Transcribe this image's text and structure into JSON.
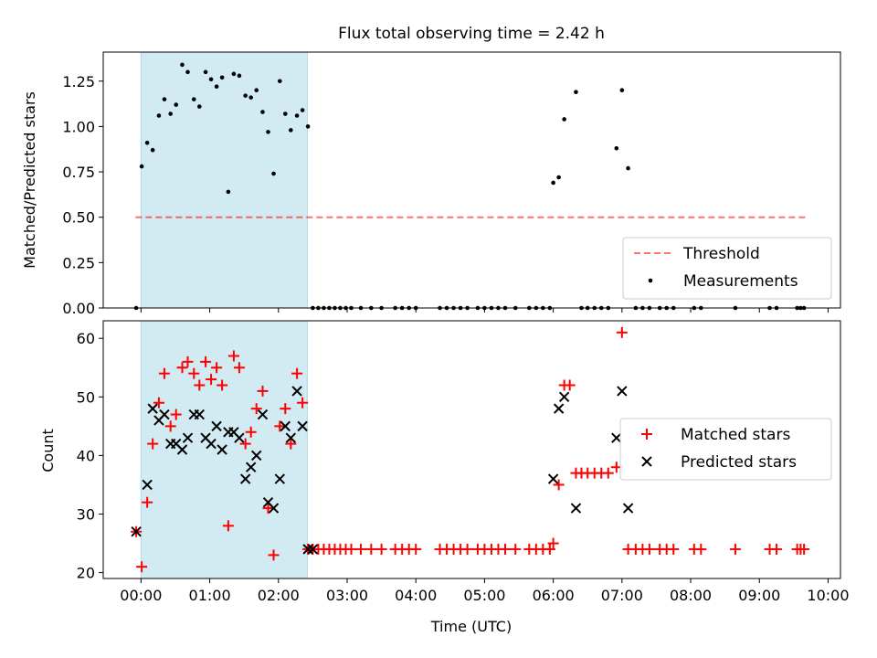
{
  "title": "Flux total observing time = 2.42 h",
  "colors": {
    "shade": "#add8e6",
    "threshold": "#ff0000",
    "measurement": "#000000",
    "matched": "#ff0000",
    "predicted": "#000000"
  },
  "chart_data": [
    {
      "type": "scatter",
      "title": "Flux total observing time = 2.42 h",
      "xlabel": "",
      "ylabel": "Matched/Predicted stars",
      "xlim": [
        -0.55,
        10.18
      ],
      "ylim": [
        0,
        1.41
      ],
      "yticks": [
        0.0,
        0.25,
        0.5,
        0.75,
        1.0,
        1.25
      ],
      "ytick_labels": [
        "0.00",
        "0.25",
        "0.50",
        "0.75",
        "1.00",
        "1.25"
      ],
      "shaded_span": [
        0.0,
        2.42
      ],
      "legend": {
        "position": "lower right",
        "entries": [
          "Threshold",
          "Measurements"
        ]
      },
      "threshold": {
        "name": "Threshold",
        "y": 0.5,
        "x": [
          -0.08,
          9.67
        ],
        "style": "dashed"
      },
      "series": [
        {
          "name": "Measurements",
          "marker": "dot",
          "points": [
            [
              -0.07,
              0.0
            ],
            [
              0.01,
              0.78
            ],
            [
              0.09,
              0.91
            ],
            [
              0.17,
              0.87
            ],
            [
              0.26,
              1.06
            ],
            [
              0.34,
              1.15
            ],
            [
              0.43,
              1.07
            ],
            [
              0.51,
              1.12
            ],
            [
              0.6,
              1.34
            ],
            [
              0.68,
              1.3
            ],
            [
              0.77,
              1.15
            ],
            [
              0.85,
              1.11
            ],
            [
              0.94,
              1.3
            ],
            [
              1.02,
              1.26
            ],
            [
              1.1,
              1.22
            ],
            [
              1.18,
              1.27
            ],
            [
              1.27,
              0.64
            ],
            [
              1.35,
              1.29
            ],
            [
              1.43,
              1.28
            ],
            [
              1.52,
              1.17
            ],
            [
              1.6,
              1.16
            ],
            [
              1.68,
              1.2
            ],
            [
              1.77,
              1.08
            ],
            [
              1.85,
              0.97
            ],
            [
              1.93,
              0.74
            ],
            [
              2.02,
              1.25
            ],
            [
              2.1,
              1.07
            ],
            [
              2.18,
              0.98
            ],
            [
              2.27,
              1.06
            ],
            [
              2.35,
              1.09
            ],
            [
              2.43,
              1.0
            ],
            [
              2.5,
              0.0
            ],
            [
              2.58,
              0.0
            ],
            [
              2.66,
              0.0
            ],
            [
              2.74,
              0.0
            ],
            [
              2.82,
              0.0
            ],
            [
              2.9,
              0.0
            ],
            [
              2.98,
              0.0
            ],
            [
              3.06,
              0.0
            ],
            [
              3.2,
              0.0
            ],
            [
              3.35,
              0.0
            ],
            [
              3.5,
              0.0
            ],
            [
              3.7,
              0.0
            ],
            [
              3.8,
              0.0
            ],
            [
              3.9,
              0.0
            ],
            [
              4.0,
              0.0
            ],
            [
              4.35,
              0.0
            ],
            [
              4.45,
              0.0
            ],
            [
              4.55,
              0.0
            ],
            [
              4.65,
              0.0
            ],
            [
              4.75,
              0.0
            ],
            [
              4.9,
              0.0
            ],
            [
              5.0,
              0.0
            ],
            [
              5.1,
              0.0
            ],
            [
              5.2,
              0.0
            ],
            [
              5.3,
              0.0
            ],
            [
              5.45,
              0.0
            ],
            [
              5.65,
              0.0
            ],
            [
              5.75,
              0.0
            ],
            [
              5.85,
              0.0
            ],
            [
              5.95,
              0.0
            ],
            [
              6.0,
              0.69
            ],
            [
              6.08,
              0.72
            ],
            [
              6.16,
              1.04
            ],
            [
              6.33,
              1.19
            ],
            [
              6.41,
              0.0
            ],
            [
              6.5,
              0.0
            ],
            [
              6.6,
              0.0
            ],
            [
              6.7,
              0.0
            ],
            [
              6.8,
              0.0
            ],
            [
              6.92,
              0.88
            ],
            [
              7.0,
              1.2
            ],
            [
              7.09,
              0.77
            ],
            [
              7.2,
              0.0
            ],
            [
              7.3,
              0.0
            ],
            [
              7.4,
              0.0
            ],
            [
              7.55,
              0.0
            ],
            [
              7.65,
              0.0
            ],
            [
              7.75,
              0.0
            ],
            [
              8.05,
              0.0
            ],
            [
              8.15,
              0.0
            ],
            [
              8.65,
              0.0
            ],
            [
              9.15,
              0.0
            ],
            [
              9.25,
              0.0
            ],
            [
              9.55,
              0.0
            ],
            [
              9.6,
              0.0
            ],
            [
              9.65,
              0.0
            ]
          ]
        }
      ]
    },
    {
      "type": "scatter",
      "xlabel": "Time (UTC)",
      "ylabel": "Count",
      "xlim": [
        -0.55,
        10.18
      ],
      "ylim": [
        19,
        63
      ],
      "xticks": [
        0,
        1,
        2,
        3,
        4,
        5,
        6,
        7,
        8,
        9,
        10
      ],
      "xtick_labels": [
        "00:00",
        "01:00",
        "02:00",
        "03:00",
        "04:00",
        "05:00",
        "06:00",
        "07:00",
        "08:00",
        "09:00",
        "10:00"
      ],
      "yticks": [
        20,
        30,
        40,
        50,
        60
      ],
      "ytick_labels": [
        "20",
        "30",
        "40",
        "50",
        "60"
      ],
      "shaded_span": [
        0.0,
        2.42
      ],
      "legend": {
        "position": "center right",
        "entries": [
          "Matched stars",
          "Predicted stars"
        ]
      },
      "series": [
        {
          "name": "Matched stars",
          "marker": "plus",
          "points": [
            [
              -0.07,
              27
            ],
            [
              0.01,
              21
            ],
            [
              0.09,
              32
            ],
            [
              0.17,
              42
            ],
            [
              0.26,
              49
            ],
            [
              0.34,
              54
            ],
            [
              0.43,
              45
            ],
            [
              0.51,
              47
            ],
            [
              0.6,
              55
            ],
            [
              0.68,
              56
            ],
            [
              0.77,
              54
            ],
            [
              0.85,
              52
            ],
            [
              0.94,
              56
            ],
            [
              1.02,
              53
            ],
            [
              1.1,
              55
            ],
            [
              1.18,
              52
            ],
            [
              1.27,
              28
            ],
            [
              1.35,
              57
            ],
            [
              1.43,
              55
            ],
            [
              1.52,
              42
            ],
            [
              1.6,
              44
            ],
            [
              1.68,
              48
            ],
            [
              1.77,
              51
            ],
            [
              1.85,
              31
            ],
            [
              1.93,
              23
            ],
            [
              2.02,
              45
            ],
            [
              2.1,
              48
            ],
            [
              2.18,
              42
            ],
            [
              2.27,
              54
            ],
            [
              2.35,
              49
            ],
            [
              2.43,
              24
            ],
            [
              2.5,
              24
            ],
            [
              2.58,
              24
            ],
            [
              2.66,
              24
            ],
            [
              2.74,
              24
            ],
            [
              2.82,
              24
            ],
            [
              2.9,
              24
            ],
            [
              2.98,
              24
            ],
            [
              3.06,
              24
            ],
            [
              3.2,
              24
            ],
            [
              3.35,
              24
            ],
            [
              3.5,
              24
            ],
            [
              3.7,
              24
            ],
            [
              3.8,
              24
            ],
            [
              3.9,
              24
            ],
            [
              4.0,
              24
            ],
            [
              4.35,
              24
            ],
            [
              4.45,
              24
            ],
            [
              4.55,
              24
            ],
            [
              4.65,
              24
            ],
            [
              4.75,
              24
            ],
            [
              4.9,
              24
            ],
            [
              5.0,
              24
            ],
            [
              5.1,
              24
            ],
            [
              5.2,
              24
            ],
            [
              5.3,
              24
            ],
            [
              5.45,
              24
            ],
            [
              5.65,
              24
            ],
            [
              5.75,
              24
            ],
            [
              5.85,
              24
            ],
            [
              5.95,
              24
            ],
            [
              6.0,
              25
            ],
            [
              6.08,
              35
            ],
            [
              6.16,
              52
            ],
            [
              6.24,
              52
            ],
            [
              6.33,
              37
            ],
            [
              6.41,
              37
            ],
            [
              6.5,
              37
            ],
            [
              6.6,
              37
            ],
            [
              6.7,
              37
            ],
            [
              6.8,
              37
            ],
            [
              6.92,
              38
            ],
            [
              7.0,
              61
            ],
            [
              7.09,
              24
            ],
            [
              7.2,
              24
            ],
            [
              7.3,
              24
            ],
            [
              7.4,
              24
            ],
            [
              7.55,
              24
            ],
            [
              7.65,
              24
            ],
            [
              7.75,
              24
            ],
            [
              8.05,
              24
            ],
            [
              8.15,
              24
            ],
            [
              8.65,
              24
            ],
            [
              9.15,
              24
            ],
            [
              9.25,
              24
            ],
            [
              9.55,
              24
            ],
            [
              9.6,
              24
            ],
            [
              9.65,
              24
            ]
          ]
        },
        {
          "name": "Predicted stars",
          "marker": "x",
          "points": [
            [
              -0.07,
              27
            ],
            [
              0.09,
              35
            ],
            [
              0.17,
              48
            ],
            [
              0.26,
              46
            ],
            [
              0.34,
              47
            ],
            [
              0.43,
              42
            ],
            [
              0.51,
              42
            ],
            [
              0.6,
              41
            ],
            [
              0.68,
              43
            ],
            [
              0.77,
              47
            ],
            [
              0.85,
              47
            ],
            [
              0.94,
              43
            ],
            [
              1.02,
              42
            ],
            [
              1.1,
              45
            ],
            [
              1.18,
              41
            ],
            [
              1.27,
              44
            ],
            [
              1.35,
              44
            ],
            [
              1.43,
              43
            ],
            [
              1.52,
              36
            ],
            [
              1.6,
              38
            ],
            [
              1.68,
              40
            ],
            [
              1.77,
              47
            ],
            [
              1.85,
              32
            ],
            [
              1.93,
              31
            ],
            [
              2.02,
              36
            ],
            [
              2.1,
              45
            ],
            [
              2.18,
              43
            ],
            [
              2.27,
              51
            ],
            [
              2.35,
              45
            ],
            [
              2.43,
              24
            ],
            [
              2.5,
              24
            ],
            [
              6.0,
              36
            ],
            [
              6.08,
              48
            ],
            [
              6.16,
              50
            ],
            [
              6.33,
              31
            ],
            [
              6.92,
              43
            ],
            [
              7.0,
              51
            ],
            [
              7.09,
              31
            ]
          ]
        }
      ]
    }
  ]
}
